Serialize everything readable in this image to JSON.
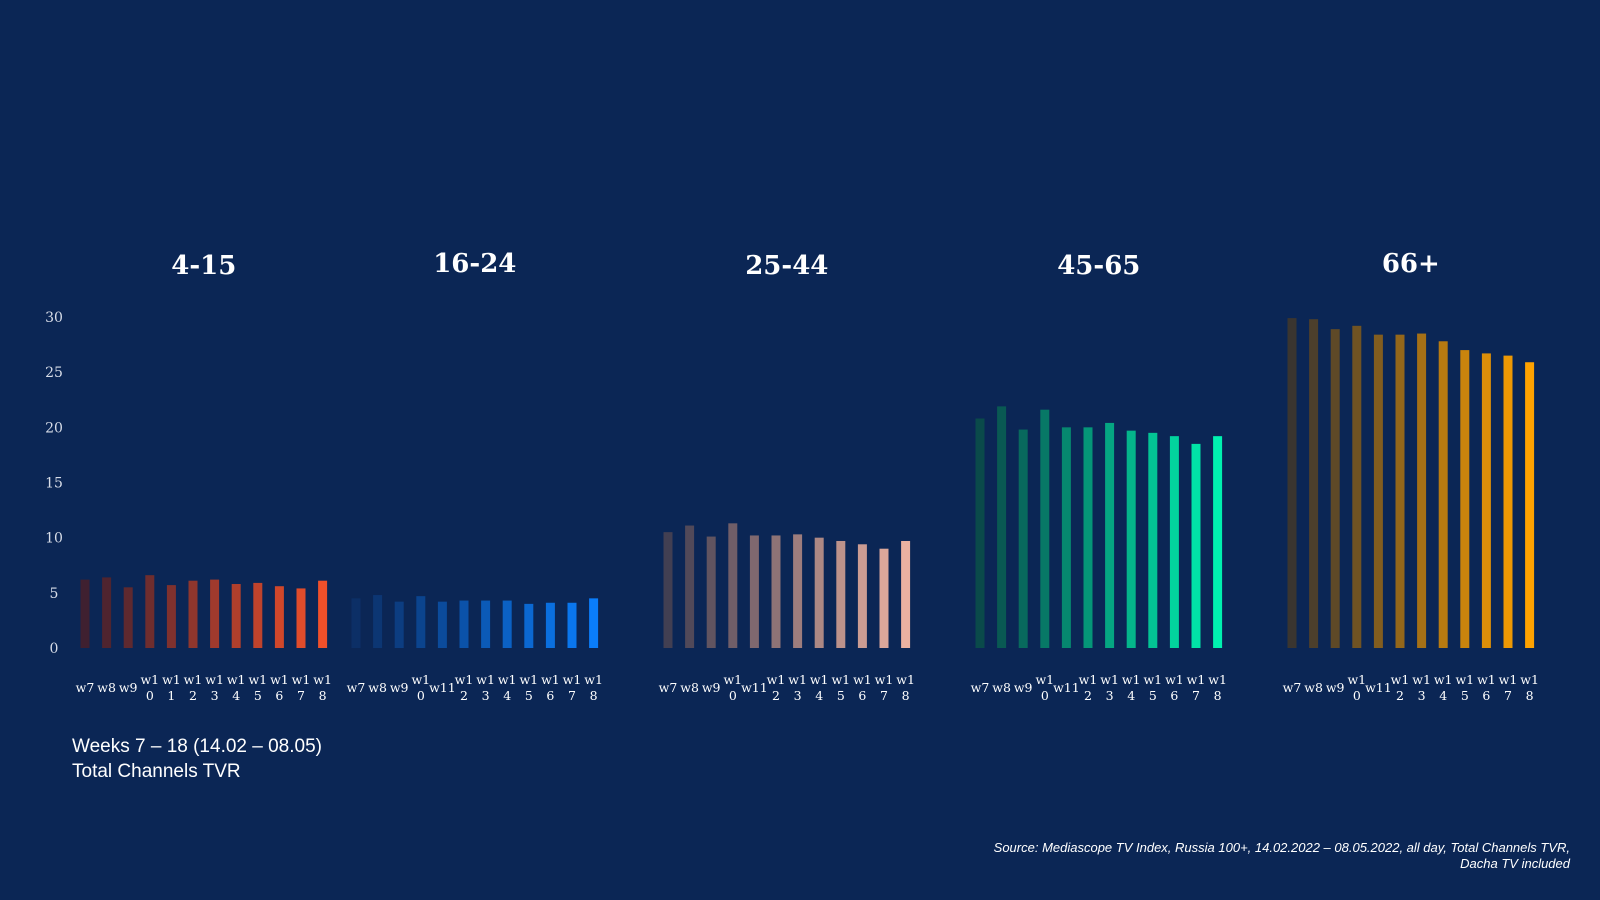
{
  "notes": {
    "line1": "Weeks 7 – 18 (14.02 – 08.05)",
    "line2": "Total Channels TVR"
  },
  "source": {
    "line1": "Source: Mediascope TV Index, Russia 100+, 14.02.2022 – 08.05.2022, all day, Total Channels TVR,",
    "line2": "Dacha TV included"
  },
  "chart_data": {
    "type": "bar",
    "ylim": [
      0,
      30
    ],
    "y_ticks": [
      "0",
      "5",
      "10",
      "15",
      "20",
      "25",
      "30"
    ],
    "categories": [
      "w7",
      "w8",
      "w9",
      "w10",
      "w11",
      "w12",
      "w13",
      "w14",
      "w15",
      "w16",
      "w17",
      "w18"
    ],
    "panels": [
      {
        "title": "4-15",
        "color_start": "#3f2030",
        "color_end": "#f0502a",
        "x_tick_labels": [
          [
            "w7"
          ],
          [
            "w8"
          ],
          [
            "w9"
          ],
          [
            "w1",
            "0"
          ],
          [
            "w1",
            "1"
          ],
          [
            "w1",
            "2"
          ],
          [
            "w1",
            "3"
          ],
          [
            "w1",
            "4"
          ],
          [
            "w1",
            "5"
          ],
          [
            "w1",
            "6"
          ],
          [
            "w1",
            "7"
          ],
          [
            "w1",
            "8"
          ]
        ],
        "values": [
          6.2,
          6.4,
          5.5,
          6.6,
          5.7,
          6.1,
          6.2,
          5.8,
          5.9,
          5.6,
          5.4,
          6.1
        ]
      },
      {
        "title": "16-24",
        "color_start": "#0c2f66",
        "color_end": "#0a7dfa",
        "x_tick_labels": [
          [
            "w7"
          ],
          [
            "w8"
          ],
          [
            "w9"
          ],
          [
            "w1",
            "0"
          ],
          [
            "w11"
          ],
          [
            "w1",
            "2"
          ],
          [
            "w1",
            "3"
          ],
          [
            "w1",
            "4"
          ],
          [
            "w1",
            "5"
          ],
          [
            "w1",
            "6"
          ],
          [
            "w1",
            "7"
          ],
          [
            "w1",
            "8"
          ]
        ],
        "values": [
          4.5,
          4.8,
          4.2,
          4.7,
          4.2,
          4.3,
          4.3,
          4.3,
          4.0,
          4.1,
          4.1,
          4.5
        ]
      },
      {
        "title": "25-44",
        "color_start": "#423f52",
        "color_end": "#eab1a1",
        "x_tick_labels": [
          [
            "w7"
          ],
          [
            "w8"
          ],
          [
            "w9"
          ],
          [
            "w1",
            "0"
          ],
          [
            "w11"
          ],
          [
            "w1",
            "2"
          ],
          [
            "w1",
            "3"
          ],
          [
            "w1",
            "4"
          ],
          [
            "w1",
            "5"
          ],
          [
            "w1",
            "6"
          ],
          [
            "w1",
            "7"
          ],
          [
            "w1",
            "8"
          ]
        ],
        "values": [
          10.5,
          11.1,
          10.1,
          11.3,
          10.2,
          10.2,
          10.3,
          10.0,
          9.7,
          9.4,
          9.0,
          9.7
        ]
      },
      {
        "title": "45-65",
        "color_start": "#0a4a4a",
        "color_end": "#00f2b0",
        "x_tick_labels": [
          [
            "w7"
          ],
          [
            "w8"
          ],
          [
            "w9"
          ],
          [
            "w1",
            "0"
          ],
          [
            "w11"
          ],
          [
            "w1",
            "2"
          ],
          [
            "w1",
            "3"
          ],
          [
            "w1",
            "4"
          ],
          [
            "w1",
            "5"
          ],
          [
            "w1",
            "6"
          ],
          [
            "w1",
            "7"
          ],
          [
            "w1",
            "8"
          ]
        ],
        "values": [
          20.8,
          21.9,
          19.8,
          21.6,
          20.0,
          20.0,
          20.4,
          19.7,
          19.5,
          19.2,
          18.5,
          19.2
        ]
      },
      {
        "title": "66+",
        "color_start": "#3a3530",
        "color_end": "#ffa200",
        "x_tick_labels": [
          [
            "w7"
          ],
          [
            "w8"
          ],
          [
            "w9"
          ],
          [
            "w1",
            "0"
          ],
          [
            "w11"
          ],
          [
            "w1",
            "2"
          ],
          [
            "w1",
            "3"
          ],
          [
            "w1",
            "4"
          ],
          [
            "w1",
            "5"
          ],
          [
            "w1",
            "6"
          ],
          [
            "w1",
            "7"
          ],
          [
            "w1",
            "8"
          ]
        ],
        "values": [
          29.9,
          29.8,
          28.9,
          29.2,
          28.4,
          28.4,
          28.5,
          27.8,
          27.0,
          26.7,
          26.5,
          25.9
        ]
      }
    ]
  }
}
